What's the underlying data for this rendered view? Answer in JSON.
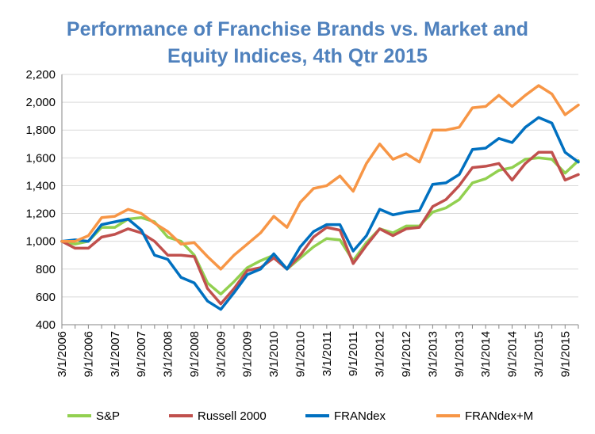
{
  "chart_data": {
    "type": "line",
    "title_line1": "Performance of Franchise Brands vs. Market and",
    "title_line2": "Equity Indices, 4th Qtr 2015",
    "ylim": [
      400,
      2200
    ],
    "yticks": [
      "400",
      "600",
      "800",
      "1,000",
      "1,200",
      "1,400",
      "1,600",
      "1,800",
      "2,000",
      "2,200"
    ],
    "xticks": [
      "3/1/2006",
      "9/1/2006",
      "3/1/2007",
      "9/1/2007",
      "3/1/2008",
      "9/1/2008",
      "3/1/2009",
      "9/1/2009",
      "3/1/2010",
      "9/1/2010",
      "3/1/2011",
      "9/1/2011",
      "3/1/2012",
      "9/1/2012",
      "3/1/2013",
      "9/1/2013",
      "3/1/2014",
      "9/1/2014",
      "3/1/2015",
      "9/1/2015"
    ],
    "grid": true,
    "legend_position": "bottom",
    "series": [
      {
        "name": "S&P",
        "color": "#92d050",
        "values": [
          1000,
          980,
          1000,
          1100,
          1100,
          1160,
          1170,
          1140,
          1030,
          1000,
          900,
          700,
          620,
          710,
          810,
          860,
          900,
          800,
          880,
          960,
          1020,
          1010,
          860,
          990,
          1090,
          1060,
          1110,
          1110,
          1210,
          1240,
          1300,
          1420,
          1450,
          1510,
          1530,
          1590,
          1600,
          1590,
          1490,
          1580
        ]
      },
      {
        "name": "Russell 2000",
        "color": "#c0504d",
        "values": [
          1000,
          950,
          950,
          1030,
          1050,
          1090,
          1060,
          1000,
          900,
          900,
          890,
          660,
          550,
          660,
          790,
          810,
          880,
          800,
          900,
          1030,
          1100,
          1080,
          840,
          970,
          1090,
          1040,
          1090,
          1100,
          1250,
          1300,
          1400,
          1530,
          1540,
          1560,
          1440,
          1560,
          1640,
          1640,
          1440,
          1480
        ]
      },
      {
        "name": "FRANdex",
        "color": "#0070c0",
        "values": [
          1000,
          1010,
          1000,
          1120,
          1140,
          1160,
          1080,
          900,
          870,
          740,
          700,
          570,
          510,
          630,
          760,
          800,
          910,
          800,
          960,
          1070,
          1120,
          1120,
          930,
          1040,
          1230,
          1190,
          1210,
          1220,
          1410,
          1420,
          1480,
          1660,
          1670,
          1740,
          1710,
          1820,
          1890,
          1850,
          1640,
          1570
        ]
      },
      {
        "name": "FRANdex+M",
        "color": "#f79646",
        "values": [
          1000,
          1000,
          1040,
          1170,
          1180,
          1230,
          1200,
          1130,
          1070,
          980,
          990,
          890,
          800,
          900,
          980,
          1060,
          1180,
          1100,
          1280,
          1380,
          1400,
          1470,
          1360,
          1560,
          1700,
          1590,
          1630,
          1570,
          1800,
          1800,
          1820,
          1960,
          1970,
          2050,
          1970,
          2050,
          2120,
          2060,
          1910,
          1980
        ]
      }
    ]
  }
}
